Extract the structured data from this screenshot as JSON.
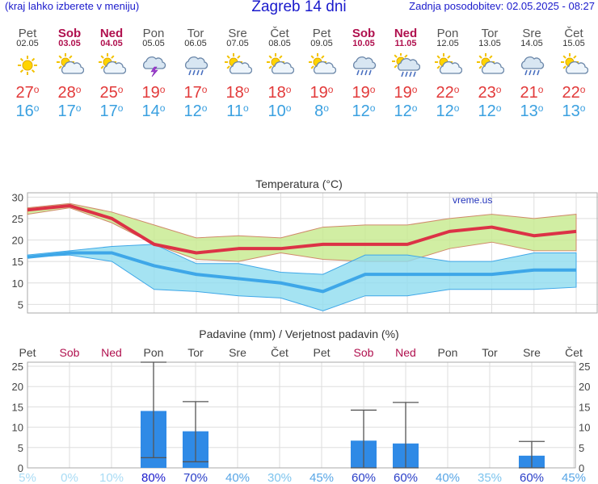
{
  "header": {
    "note": "(kraj lahko izberete v meniju)",
    "title": "Zagreb 14 dni",
    "updated": "Zadnja posodobitev: 02.05.2025 - 08:27"
  },
  "days": [
    {
      "name": "Pet",
      "date": "02.05",
      "weekend": false,
      "icon": "sun-icon",
      "max": "27",
      "min": "16"
    },
    {
      "name": "Sob",
      "date": "03.05",
      "weekend": true,
      "icon": "sun-cloud-icon",
      "max": "28",
      "min": "17"
    },
    {
      "name": "Ned",
      "date": "04.05",
      "weekend": true,
      "icon": "sun-cloud-icon",
      "max": "25",
      "min": "17"
    },
    {
      "name": "Pon",
      "date": "05.05",
      "weekend": false,
      "icon": "thunderstorm-icon",
      "max": "19",
      "min": "14"
    },
    {
      "name": "Tor",
      "date": "06.05",
      "weekend": false,
      "icon": "rain-cloud-icon",
      "max": "17",
      "min": "12"
    },
    {
      "name": "Sre",
      "date": "07.05",
      "weekend": false,
      "icon": "sun-cloud-icon",
      "max": "18",
      "min": "11"
    },
    {
      "name": "Čet",
      "date": "08.05",
      "weekend": false,
      "icon": "sun-cloud-icon",
      "max": "18",
      "min": "10"
    },
    {
      "name": "Pet",
      "date": "09.05",
      "weekend": false,
      "icon": "sun-cloud-icon",
      "max": "19",
      "min": "8"
    },
    {
      "name": "Sob",
      "date": "10.05",
      "weekend": true,
      "icon": "rain-cloud-icon",
      "max": "19",
      "min": "12"
    },
    {
      "name": "Ned",
      "date": "11.05",
      "weekend": true,
      "icon": "sun-rain-icon",
      "max": "19",
      "min": "12"
    },
    {
      "name": "Pon",
      "date": "12.05",
      "weekend": false,
      "icon": "sun-cloud-icon",
      "max": "22",
      "min": "12"
    },
    {
      "name": "Tor",
      "date": "13.05",
      "weekend": false,
      "icon": "sun-cloud-icon",
      "max": "23",
      "min": "12"
    },
    {
      "name": "Sre",
      "date": "14.05",
      "weekend": false,
      "icon": "rain-cloud-icon",
      "max": "21",
      "min": "13"
    },
    {
      "name": "Čet",
      "date": "15.05",
      "weekend": false,
      "icon": "sun-cloud-icon",
      "max": "22",
      "min": "13"
    }
  ],
  "colors": {
    "weekend": "#b0104e",
    "max_line": "#dc3246",
    "min_line": "#3ea7e8",
    "max_band": "#c6ea8c",
    "min_band": "#8fdcef",
    "precip_bar": "#2f8ae6",
    "error_bar": "#555555"
  },
  "chart_data": [
    {
      "type": "line",
      "title": "Temperatura (°C)",
      "watermark": "vreme.us",
      "ylim": [
        3,
        31
      ],
      "yticks": [
        "5",
        "10",
        "15",
        "20",
        "25",
        "30"
      ],
      "x": [
        1,
        2,
        3,
        4,
        5,
        6,
        7,
        8,
        9,
        10,
        11,
        12,
        13,
        14
      ],
      "series": [
        {
          "name": "max",
          "values": [
            27,
            28,
            25,
            19,
            17,
            18,
            18,
            19,
            19,
            19,
            22,
            23,
            21,
            22
          ],
          "band_low": [
            26,
            27.5,
            24,
            19,
            15.5,
            15,
            17,
            15.5,
            15,
            15,
            18,
            19.5,
            17.5,
            17.5
          ],
          "band_high": [
            27.5,
            28.5,
            26.5,
            23.5,
            20.5,
            21,
            20.5,
            23,
            23.5,
            23.5,
            25,
            26,
            25,
            26
          ]
        },
        {
          "name": "min",
          "values": [
            16,
            17,
            17,
            14,
            12,
            11,
            10,
            8,
            12,
            12,
            12,
            12,
            13,
            13
          ],
          "band_low": [
            16,
            16.5,
            15,
            8.5,
            8,
            7,
            6.5,
            3.5,
            7,
            7,
            8.5,
            8.5,
            8.5,
            9
          ],
          "band_high": [
            16.5,
            17.5,
            18.5,
            19,
            14.5,
            14.5,
            12.5,
            12,
            16.5,
            16.5,
            15,
            15,
            17,
            17
          ]
        }
      ]
    },
    {
      "type": "bar",
      "title": "Padavine (mm) / Verjetnost padavin (%)",
      "categories": [
        "Pet",
        "Sob",
        "Ned",
        "Pon",
        "Tor",
        "Sre",
        "Čet",
        "Pet",
        "Sob",
        "Ned",
        "Pon",
        "Tor",
        "Sre",
        "Čet"
      ],
      "ylim": [
        0,
        26
      ],
      "yticks": [
        "0",
        "5",
        "10",
        "15",
        "20",
        "25"
      ],
      "values": [
        0,
        0,
        0,
        14,
        9,
        0,
        0,
        0,
        6.7,
        6,
        0,
        0,
        3,
        0
      ],
      "err_low": [
        0,
        0,
        0,
        2.5,
        1.5,
        0,
        0,
        0,
        0,
        0,
        0,
        0,
        0,
        0
      ],
      "err_high": [
        0,
        0,
        0,
        26,
        16.3,
        0,
        0,
        0,
        14.2,
        16.1,
        0,
        0,
        6.5,
        0
      ],
      "probability": [
        "5%",
        "0%",
        "10%",
        "80%",
        "70%",
        "40%",
        "30%",
        "45%",
        "60%",
        "60%",
        "40%",
        "35%",
        "60%",
        "45%"
      ]
    }
  ]
}
